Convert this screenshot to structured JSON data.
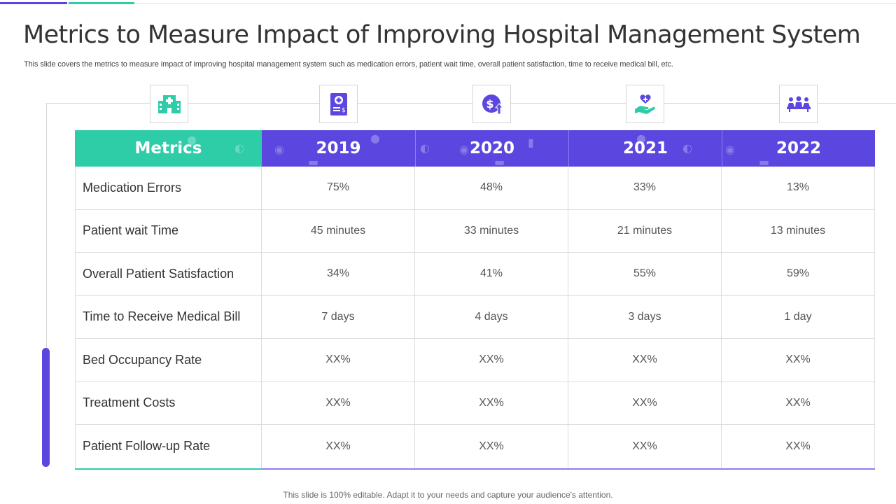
{
  "title": "Metrics to Measure Impact of Improving Hospital Management System",
  "subtitle": "This slide covers the metrics to measure impact of improving hospital management system such as medication errors, patient wait time, overall patient satisfaction, time to receive medical bill, etc.",
  "icons": [
    "hospital-icon",
    "medical-report-icon",
    "dollar-up-icon",
    "heart-hand-icon",
    "team-icon"
  ],
  "colors": {
    "teal": "#2fcca8",
    "purple": "#5b47e0"
  },
  "table": {
    "headers": [
      "Metrics",
      "2019",
      "2020",
      "2021",
      "2022"
    ],
    "rows": [
      {
        "metric": "Medication Errors",
        "values": [
          "75%",
          "48%",
          "33%",
          "13%"
        ]
      },
      {
        "metric": "Patient wait Time",
        "values": [
          "45 minutes",
          "33 minutes",
          "21 minutes",
          "13 minutes"
        ]
      },
      {
        "metric": "Overall Patient Satisfaction",
        "values": [
          "34%",
          "41%",
          "55%",
          "59%"
        ]
      },
      {
        "metric": "Time to Receive Medical Bill",
        "values": [
          "7 days",
          "4 days",
          "3 days",
          "1 day"
        ]
      },
      {
        "metric": "Bed Occupancy Rate",
        "values": [
          "XX%",
          "XX%",
          "XX%",
          "XX%"
        ]
      },
      {
        "metric": "Treatment Costs",
        "values": [
          "XX%",
          "XX%",
          "XX%",
          "XX%"
        ]
      },
      {
        "metric": "Patient Follow-up Rate",
        "values": [
          "XX%",
          "XX%",
          "XX%",
          "XX%"
        ]
      }
    ]
  },
  "footer": "This slide is 100% editable. Adapt it to your needs and capture your audience's attention."
}
